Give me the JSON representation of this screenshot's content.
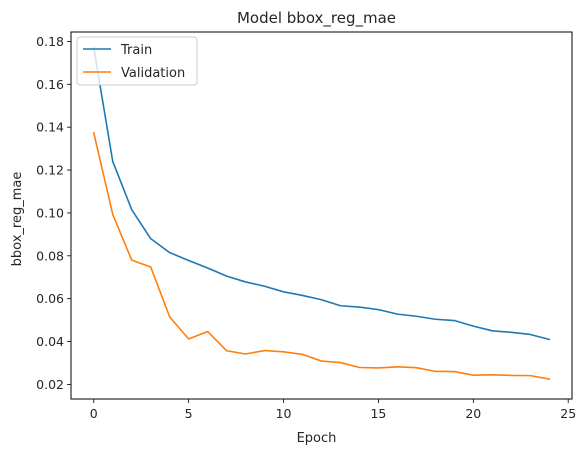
{
  "chart_data": {
    "type": "line",
    "title": "Model bbox_reg_mae",
    "xlabel": "Epoch",
    "ylabel": "bbox_reg_mae",
    "x": [
      0,
      1,
      2,
      3,
      4,
      5,
      6,
      7,
      8,
      9,
      10,
      11,
      12,
      13,
      14,
      15,
      16,
      17,
      18,
      19,
      20,
      21,
      22,
      23,
      24
    ],
    "xlim": [
      -1.2,
      25.2
    ],
    "ylim": [
      0.0132,
      0.1844
    ],
    "xticks": [
      0,
      5,
      10,
      15,
      20,
      25
    ],
    "yticks": [
      0.02,
      0.04,
      0.06,
      0.08,
      0.1,
      0.12,
      0.14,
      0.16,
      0.18
    ],
    "ytick_labels": [
      "0.02",
      "0.04",
      "0.06",
      "0.08",
      "0.10",
      "0.12",
      "0.14",
      "0.16",
      "0.18"
    ],
    "legend_position": "upper left",
    "grid": false,
    "series": [
      {
        "name": "Train",
        "color": "#1f77b4",
        "values": [
          0.177,
          0.124,
          0.1015,
          0.088,
          0.0815,
          0.0778,
          0.0743,
          0.0705,
          0.0678,
          0.0658,
          0.0632,
          0.0615,
          0.0595,
          0.0567,
          0.0561,
          0.0549,
          0.0528,
          0.0518,
          0.0504,
          0.0498,
          0.0472,
          0.045,
          0.0443,
          0.0433,
          0.041
        ]
      },
      {
        "name": "Validation",
        "color": "#ff7f0e",
        "values": [
          0.1373,
          0.0993,
          0.078,
          0.0748,
          0.0515,
          0.0412,
          0.0447,
          0.0357,
          0.0342,
          0.0358,
          0.0352,
          0.034,
          0.0309,
          0.0302,
          0.0279,
          0.0277,
          0.0282,
          0.0278,
          0.0261,
          0.026,
          0.0243,
          0.0245,
          0.0242,
          0.0241,
          0.0225
        ]
      }
    ]
  }
}
